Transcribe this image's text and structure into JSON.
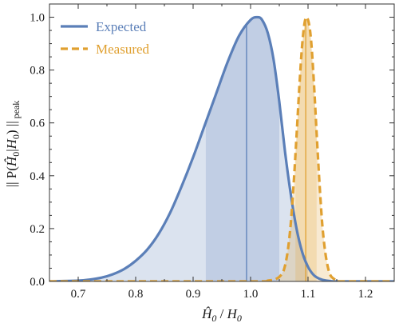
{
  "chart_data": {
    "type": "line",
    "title": "",
    "xlim": [
      0.65,
      1.25
    ],
    "ylim": [
      0.0,
      1.05
    ],
    "x_ticks": [
      "0.7",
      "0.8",
      "0.9",
      "1.0",
      "1.1",
      "1.2"
    ],
    "x_tick_values": [
      0.7,
      0.8,
      0.9,
      1.0,
      1.1,
      1.2
    ],
    "y_ticks": [
      "0.0",
      "0.2",
      "0.4",
      "0.6",
      "0.8",
      "1.0"
    ],
    "y_tick_values": [
      0.0,
      0.2,
      0.4,
      0.6,
      0.8,
      1.0
    ],
    "grid": false,
    "legend_position": "top-left",
    "series": [
      {
        "name": "Expected",
        "color": "#5b7fb8",
        "line_style": "solid",
        "peak_x": 1.012,
        "median_x": 0.993,
        "shaded_ranges": [
          [
            0.65,
            0.922
          ],
          [
            0.922,
            1.05
          ],
          [
            1.05,
            1.1
          ]
        ],
        "x": [
          0.65,
          0.7,
          0.72,
          0.74,
          0.76,
          0.78,
          0.8,
          0.82,
          0.84,
          0.86,
          0.88,
          0.9,
          0.92,
          0.94,
          0.96,
          0.98,
          1.0,
          1.012,
          1.02,
          1.03,
          1.04,
          1.05,
          1.06,
          1.07,
          1.08,
          1.09,
          1.1,
          1.11,
          1.12,
          1.13,
          1.15,
          1.2,
          1.25
        ],
        "values": [
          0.0,
          0.003,
          0.007,
          0.014,
          0.027,
          0.047,
          0.078,
          0.12,
          0.18,
          0.26,
          0.36,
          0.47,
          0.59,
          0.71,
          0.83,
          0.93,
          0.99,
          1.0,
          0.99,
          0.94,
          0.84,
          0.68,
          0.49,
          0.33,
          0.2,
          0.11,
          0.055,
          0.024,
          0.01,
          0.004,
          0.0,
          0.0,
          0.0
        ]
      },
      {
        "name": "Measured",
        "color": "#e0a030",
        "line_style": "dashed",
        "peak_x": 1.097,
        "median_x": 1.096,
        "shaded_ranges": [
          [
            1.05,
            1.078
          ],
          [
            1.078,
            1.115
          ],
          [
            1.115,
            1.14
          ]
        ],
        "x": [
          0.65,
          1.0,
          1.03,
          1.045,
          1.055,
          1.06,
          1.065,
          1.07,
          1.075,
          1.08,
          1.085,
          1.09,
          1.095,
          1.1,
          1.105,
          1.11,
          1.115,
          1.12,
          1.125,
          1.13,
          1.135,
          1.14,
          1.15,
          1.16,
          1.25
        ],
        "values": [
          0.0,
          0.0,
          0.003,
          0.01,
          0.03,
          0.06,
          0.12,
          0.22,
          0.37,
          0.55,
          0.74,
          0.9,
          0.99,
          0.99,
          0.92,
          0.76,
          0.56,
          0.37,
          0.21,
          0.11,
          0.05,
          0.02,
          0.004,
          0.0,
          0.0
        ]
      }
    ]
  }
}
